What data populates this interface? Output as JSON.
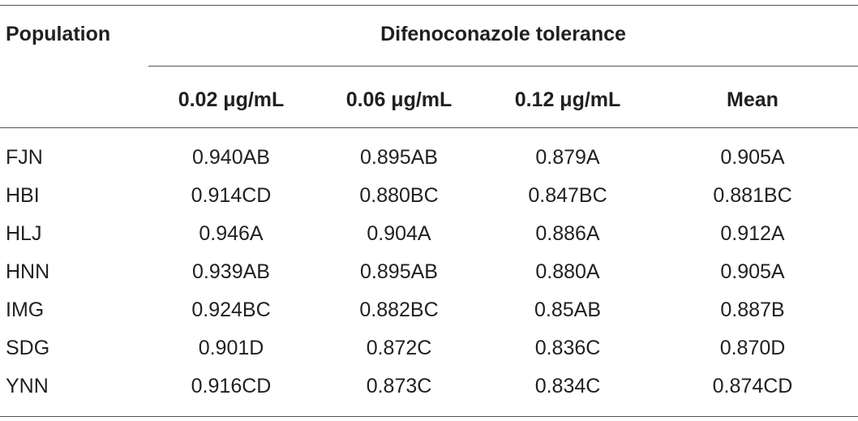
{
  "table": {
    "header": {
      "population_label": "Population",
      "group_label": "Difenoconazole tolerance",
      "columns": [
        "0.02 μg/mL",
        "0.06 μg/mL",
        "0.12 μg/mL",
        "Mean"
      ]
    },
    "rows": [
      {
        "population": "FJN",
        "values": [
          "0.940AB",
          "0.895AB",
          "0.879A",
          "0.905A"
        ]
      },
      {
        "population": "HBI",
        "values": [
          "0.914CD",
          "0.880BC",
          "0.847BC",
          "0.881BC"
        ]
      },
      {
        "population": "HLJ",
        "values": [
          "0.946A",
          "0.904A",
          "0.886A",
          "0.912A"
        ]
      },
      {
        "population": "HNN",
        "values": [
          "0.939AB",
          "0.895AB",
          "0.880A",
          "0.905A"
        ]
      },
      {
        "population": "IMG",
        "values": [
          "0.924BC",
          "0.882BC",
          "0.85AB",
          "0.887B"
        ]
      },
      {
        "population": "SDG",
        "values": [
          "0.901D",
          "0.872C",
          "0.836C",
          "0.870D"
        ]
      },
      {
        "population": "YNN",
        "values": [
          "0.916CD",
          "0.873C",
          "0.834C",
          "0.874CD"
        ]
      }
    ]
  }
}
